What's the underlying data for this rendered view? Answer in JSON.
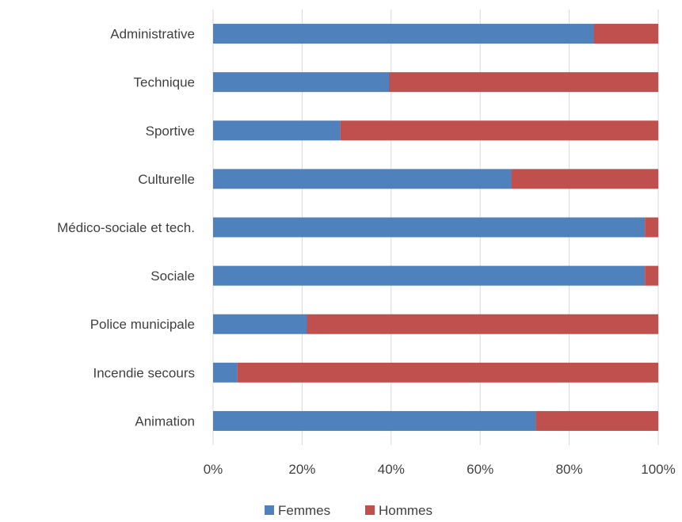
{
  "chart_data": {
    "type": "bar",
    "orientation": "horizontal",
    "stacked": "percent",
    "categories": [
      "Administrative",
      "Technique",
      "Sportive",
      "Culturelle",
      "Médico-sociale et tech.",
      "Sociale",
      "Police municipale",
      "Incendie secours",
      "Animation"
    ],
    "series": [
      {
        "name": "Femmes",
        "color": "#4f81bd",
        "values": [
          85.5,
          39.5,
          28.5,
          67,
          97,
          97,
          21,
          5.5,
          72.5
        ]
      },
      {
        "name": "Hommes",
        "color": "#c0504d",
        "values": [
          14.5,
          60.5,
          71.5,
          33,
          3,
          3,
          79,
          94.5,
          27.5
        ]
      }
    ],
    "xlim": [
      0,
      100
    ],
    "xticks": [
      "0%",
      "20%",
      "40%",
      "60%",
      "80%",
      "100%"
    ],
    "grid": "vertical",
    "legend": "bottom"
  }
}
